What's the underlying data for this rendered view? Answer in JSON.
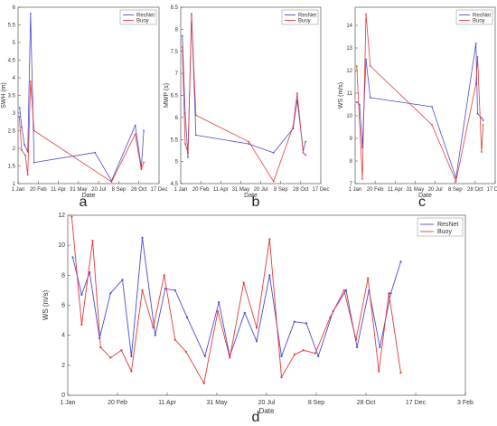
{
  "colors": {
    "resnet": "#4a4ad0",
    "buoy": "#e23a3a",
    "axis": "#555555"
  },
  "chart_data": [
    {
      "id": "a",
      "panel_label": "a",
      "type": "line",
      "xlabel": "Date",
      "ylabel": "SWH (m)",
      "xlim": [
        0,
        350
      ],
      "ylim": [
        1,
        6
      ],
      "xticks": [
        {
          "v": 0,
          "label": "1 Jan"
        },
        {
          "v": 50,
          "label": "20 Feb"
        },
        {
          "v": 100,
          "label": "11 Apr"
        },
        {
          "v": 150,
          "label": "31 May"
        },
        {
          "v": 200,
          "label": "20 Jul"
        },
        {
          "v": 250,
          "label": "8 Sep"
        },
        {
          "v": 300,
          "label": "28 Oct"
        },
        {
          "v": 350,
          "label": "17 Dec"
        }
      ],
      "yticks": [
        1,
        1.5,
        2,
        2.5,
        3,
        3.5,
        4,
        4.5,
        5,
        5.5,
        6
      ],
      "legend": {
        "position": "top-right"
      },
      "series": [
        {
          "name": "ResNet",
          "color": "#4a4ad0",
          "points": [
            [
              4,
              3.15
            ],
            [
              9,
              2.6
            ],
            [
              16,
              2.1
            ],
            [
              24,
              1.9
            ],
            [
              31,
              5.82
            ],
            [
              40,
              1.6
            ],
            [
              191,
              1.88
            ],
            [
              232,
              1.08
            ],
            [
              291,
              2.65
            ],
            [
              306,
              1.45
            ],
            [
              312,
              2.5
            ]
          ]
        },
        {
          "name": "Buoy",
          "color": "#e23a3a",
          "points": [
            [
              3,
              2.9
            ],
            [
              9,
              1.95
            ],
            [
              18,
              1.8
            ],
            [
              24,
              1.25
            ],
            [
              31,
              3.9
            ],
            [
              40,
              2.5
            ],
            [
              232,
              1.05
            ],
            [
              291,
              2.4
            ],
            [
              306,
              1.4
            ],
            [
              312,
              1.6
            ]
          ]
        }
      ]
    },
    {
      "id": "b",
      "panel_label": "b",
      "type": "line",
      "xlabel": "Date",
      "ylabel": "MWP (s)",
      "xlim": [
        0,
        350
      ],
      "ylim": [
        4.5,
        8.5
      ],
      "xticks": [
        {
          "v": 0,
          "label": "1 Jan"
        },
        {
          "v": 50,
          "label": "20 Feb"
        },
        {
          "v": 100,
          "label": "11 Apr"
        },
        {
          "v": 150,
          "label": "31 May"
        },
        {
          "v": 200,
          "label": "20 Jul"
        },
        {
          "v": 250,
          "label": "8 Sep"
        },
        {
          "v": 300,
          "label": "28 Oct"
        },
        {
          "v": 350,
          "label": "17 Dec"
        }
      ],
      "yticks": [
        4.5,
        5,
        5.5,
        6,
        6.5,
        7,
        7.5,
        8,
        8.5
      ],
      "legend": {
        "position": "top-right"
      },
      "series": [
        {
          "name": "ResNet",
          "color": "#4a4ad0",
          "points": [
            [
              4,
              7.85
            ],
            [
              11,
              6.1
            ],
            [
              18,
              5.1
            ],
            [
              27,
              8.35
            ],
            [
              38,
              5.6
            ],
            [
              170,
              5.4
            ],
            [
              232,
              5.2
            ],
            [
              281,
              5.75
            ],
            [
              291,
              6.4
            ],
            [
              306,
              5.25
            ],
            [
              312,
              5.45
            ]
          ]
        },
        {
          "name": "Buoy",
          "color": "#e23a3a",
          "points": [
            [
              4,
              7.6
            ],
            [
              11,
              5.4
            ],
            [
              18,
              5.2
            ],
            [
              27,
              8.3
            ],
            [
              38,
              6.05
            ],
            [
              170,
              5.45
            ],
            [
              232,
              4.55
            ],
            [
              281,
              5.8
            ],
            [
              291,
              6.55
            ],
            [
              306,
              5.2
            ],
            [
              312,
              5.15
            ]
          ]
        }
      ]
    },
    {
      "id": "c",
      "panel_label": "c",
      "type": "line",
      "xlabel": "Date",
      "ylabel": "WS (m/s)",
      "xlim": [
        0,
        350
      ],
      "ylim": [
        7,
        14.8
      ],
      "xticks": [
        {
          "v": 0,
          "label": "1 Jan"
        },
        {
          "v": 50,
          "label": "20 Feb"
        },
        {
          "v": 100,
          "label": "11 Apr"
        },
        {
          "v": 150,
          "label": "31 May"
        },
        {
          "v": 200,
          "label": "20 Jul"
        },
        {
          "v": 250,
          "label": "8 Sep"
        },
        {
          "v": 300,
          "label": "28 Oct"
        },
        {
          "v": 350,
          "label": "17 Dec"
        }
      ],
      "yticks": [
        7,
        8,
        9,
        10,
        11,
        12,
        13,
        14
      ],
      "legend": {
        "position": "top-right"
      },
      "series": [
        {
          "name": "ResNet",
          "color": "#4a4ad0",
          "points": [
            [
              4,
              10.6
            ],
            [
              11,
              10.5
            ],
            [
              18,
              8.6
            ],
            [
              27,
              12.5
            ],
            [
              38,
              10.8
            ],
            [
              192,
              10.4
            ],
            [
              252,
              7.25
            ],
            [
              302,
              13.2
            ],
            [
              306,
              10.1
            ],
            [
              316,
              9.9
            ],
            [
              320,
              9.8
            ]
          ]
        },
        {
          "name": "Buoy",
          "color": "#e23a3a",
          "points": [
            [
              4,
              12.2
            ],
            [
              18,
              7.2
            ],
            [
              27,
              14.5
            ],
            [
              38,
              12.2
            ],
            [
              192,
              9.6
            ],
            [
              252,
              7.1
            ],
            [
              302,
              11.4
            ],
            [
              306,
              12.6
            ],
            [
              316,
              8.4
            ],
            [
              320,
              9.6
            ]
          ]
        }
      ]
    },
    {
      "id": "d",
      "panel_label": "d",
      "type": "line",
      "xlabel": "Date",
      "ylabel": "WS (m/s)",
      "xlim": [
        0,
        400
      ],
      "ylim": [
        0,
        12
      ],
      "xticks": [
        {
          "v": 0,
          "label": "1 Jan"
        },
        {
          "v": 50,
          "label": "20 Feb"
        },
        {
          "v": 100,
          "label": "11 Apr"
        },
        {
          "v": 150,
          "label": "31 May"
        },
        {
          "v": 200,
          "label": "20 Jul"
        },
        {
          "v": 250,
          "label": "8 Sep"
        },
        {
          "v": 300,
          "label": "28 Oct"
        },
        {
          "v": 350,
          "label": "17 Dec"
        },
        {
          "v": 400,
          "label": "3 Feb"
        }
      ],
      "yticks": [
        0,
        2,
        4,
        6,
        8,
        10,
        12
      ],
      "legend": {
        "position": "top-right"
      },
      "series": [
        {
          "name": "ResNet",
          "color": "#4a4ad0",
          "points": [
            [
              5,
              9.2
            ],
            [
              14,
              6.7
            ],
            [
              22,
              8.2
            ],
            [
              32,
              3.8
            ],
            [
              43,
              6.8
            ],
            [
              55,
              7.7
            ],
            [
              64,
              2.6
            ],
            [
              75,
              10.5
            ],
            [
              88,
              4.0
            ],
            [
              98,
              7.1
            ],
            [
              108,
              7.0
            ],
            [
              120,
              5.2
            ],
            [
              138,
              2.6
            ],
            [
              152,
              6.2
            ],
            [
              163,
              2.6
            ],
            [
              178,
              5.5
            ],
            [
              190,
              3.6
            ],
            [
              203,
              8.0
            ],
            [
              215,
              2.6
            ],
            [
              228,
              4.9
            ],
            [
              240,
              4.8
            ],
            [
              252,
              2.6
            ],
            [
              267,
              5.6
            ],
            [
              280,
              7.0
            ],
            [
              291,
              3.2
            ],
            [
              303,
              7.0
            ],
            [
              314,
              3.2
            ],
            [
              325,
              6.8
            ],
            [
              335,
              8.9
            ]
          ]
        },
        {
          "name": "Buoy",
          "color": "#e23a3a",
          "points": [
            [
              4,
              11.9
            ],
            [
              14,
              4.7
            ],
            [
              25,
              10.3
            ],
            [
              33,
              3.2
            ],
            [
              43,
              2.5
            ],
            [
              54,
              3.0
            ],
            [
              64,
              1.6
            ],
            [
              75,
              7.0
            ],
            [
              86,
              4.5
            ],
            [
              97,
              8.0
            ],
            [
              108,
              3.7
            ],
            [
              119,
              2.9
            ],
            [
              137,
              0.8
            ],
            [
              151,
              5.6
            ],
            [
              163,
              2.5
            ],
            [
              177,
              7.5
            ],
            [
              190,
              4.5
            ],
            [
              203,
              10.4
            ],
            [
              215,
              1.2
            ],
            [
              228,
              2.7
            ],
            [
              237,
              3.0
            ],
            [
              249,
              2.8
            ],
            [
              264,
              5.2
            ],
            [
              278,
              7.0
            ],
            [
              290,
              3.7
            ],
            [
              302,
              7.8
            ],
            [
              313,
              1.6
            ],
            [
              323,
              6.8
            ],
            [
              335,
              1.5
            ]
          ]
        }
      ]
    }
  ]
}
